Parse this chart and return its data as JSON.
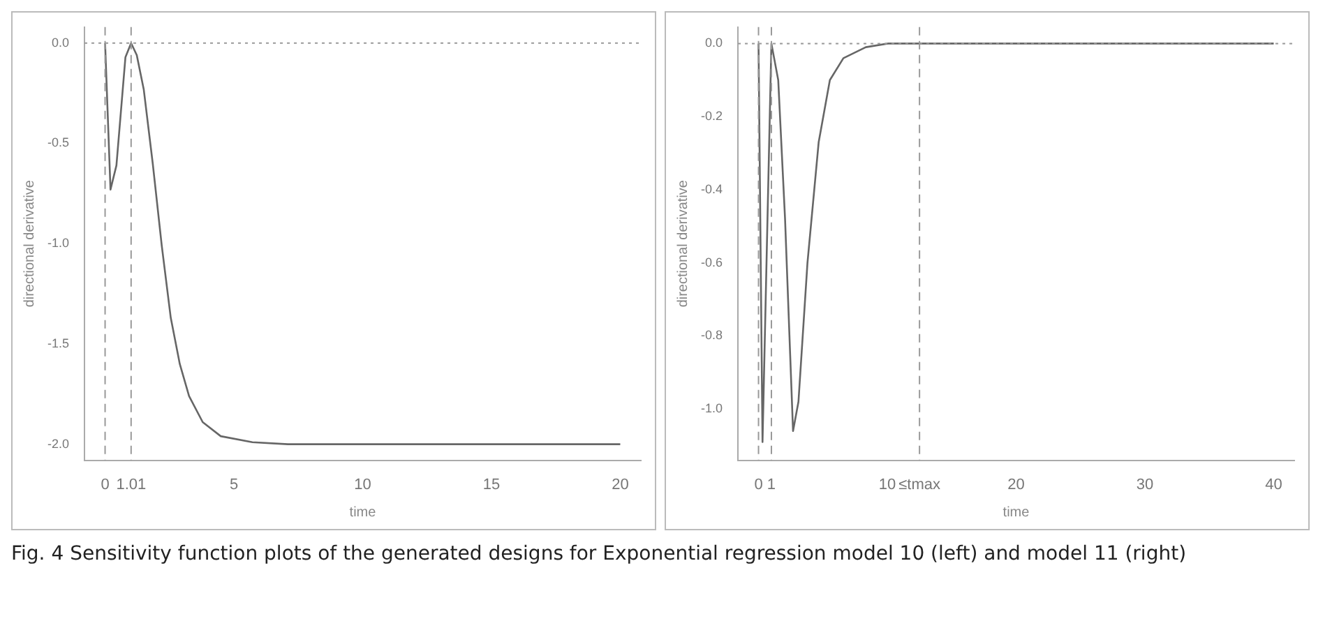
{
  "chart_data": [
    {
      "type": "line",
      "xlabel": "time",
      "ylabel": "directional derivative",
      "xlim": [
        -0.8,
        20.8
      ],
      "ylim": [
        -2.08,
        0.08
      ],
      "xticks": [
        0,
        {
          "value": 1.01,
          "label": "1.01"
        },
        5,
        10,
        15,
        20
      ],
      "yticks": [
        {
          "value": 0,
          "label": "0.0"
        },
        -0.5,
        {
          "value": -1,
          "label": "-1.0"
        },
        -1.5,
        {
          "value": -2,
          "label": "-2.0"
        }
      ],
      "grid": false,
      "legend": false,
      "marker": "none",
      "line_style": "solid",
      "series": [
        {
          "color": "#666666",
          "x": [
            0,
            0.21,
            0.44,
            0.79,
            1.01,
            1.23,
            1.5,
            1.85,
            2.2,
            2.55,
            2.9,
            3.26,
            3.79,
            4.49,
            5.72,
            7.1,
            20
          ],
          "values": [
            0,
            -0.73,
            -0.61,
            -0.07,
            0,
            -0.06,
            -0.23,
            -0.6,
            -1.01,
            -1.37,
            -1.6,
            -1.76,
            -1.89,
            -1.96,
            -1.99,
            -2,
            -2
          ]
        }
      ],
      "ref_lines": [
        {
          "axis": "x",
          "value": 0,
          "line_style": "dashed",
          "color": "#999999"
        },
        {
          "axis": "x",
          "value": 1.01,
          "line_style": "dashed",
          "color": "#999999"
        },
        {
          "axis": "y",
          "value": 0,
          "line_style": "dotted",
          "color": "#999999"
        }
      ],
      "annotations": [
        "Fig. 4  Sensitivity function plots of the generated designs for Exponential regression model 10 (left) and model 11 (right)"
      ]
    },
    {
      "type": "line",
      "xlabel": "time",
      "ylabel": "directional derivative",
      "xlim": [
        -1.6,
        41.6
      ],
      "ylim": [
        -1.14,
        0.045
      ],
      "xticks": [
        0,
        1,
        10,
        {
          "value": 12.5,
          "label": "≤tmax"
        },
        20,
        30,
        40
      ],
      "yticks": [
        {
          "value": 0,
          "label": "0.0"
        },
        -0.2,
        -0.4,
        -0.6,
        -0.8,
        {
          "value": -1,
          "label": "-1.0"
        }
      ],
      "grid": false,
      "legend": false,
      "marker": "none",
      "line_style": "solid",
      "series": [
        {
          "color": "#666666",
          "x": [
            0,
            0.31,
            1,
            1.53,
            2.06,
            2.68,
            3.1,
            3.8,
            4.67,
            5.54,
            6.59,
            8.33,
            10.07,
            40
          ],
          "values": [
            0,
            -1.09,
            0,
            -0.1,
            -0.48,
            -1.06,
            -0.98,
            -0.6,
            -0.27,
            -0.1,
            -0.04,
            -0.01,
            0,
            0
          ]
        }
      ],
      "ref_lines": [
        {
          "axis": "x",
          "value": 0,
          "line_style": "dashed",
          "color": "#999999"
        },
        {
          "axis": "x",
          "value": 1,
          "line_style": "dashed",
          "color": "#999999"
        },
        {
          "axis": "x",
          "value": 12.5,
          "line_style": "dashed",
          "color": "#999999"
        },
        {
          "axis": "y",
          "value": 0,
          "line_style": "dotted",
          "color": "#999999"
        }
      ]
    }
  ]
}
